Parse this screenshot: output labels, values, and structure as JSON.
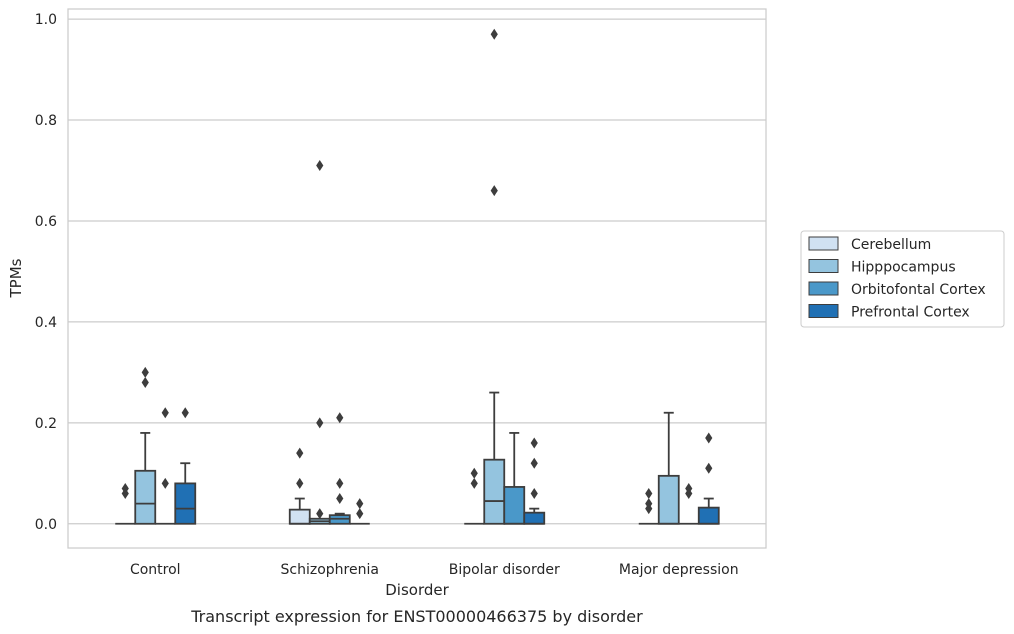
{
  "chart_data": {
    "type": "box",
    "ylabel": "TPMs",
    "xlabel": "Disorder",
    "caption": "Transcript expression for ENST00000466375 by disorder",
    "ylim": [
      -0.048,
      1.02
    ],
    "yticks": [
      0.0,
      0.2,
      0.4,
      0.6,
      0.8,
      1.0
    ],
    "grid": true,
    "legend_position": "right",
    "categories": [
      "Control",
      "Schizophrenia",
      "Bipolar disorder",
      "Major depression"
    ],
    "series": [
      {
        "name": "Cerebellum",
        "color": "#d0e1f2",
        "boxes": [
          {
            "whislo": 0.0,
            "q1": 0.0,
            "med": 0.0,
            "q3": 0.0,
            "whishi": 0.0,
            "fliers": [
              0.06,
              0.07
            ]
          },
          {
            "whislo": 0.0,
            "q1": 0.0,
            "med": 0.0,
            "q3": 0.028,
            "whishi": 0.05,
            "fliers": [
              0.08,
              0.14
            ]
          },
          {
            "whislo": 0.0,
            "q1": 0.0,
            "med": 0.0,
            "q3": 0.0,
            "whishi": 0.0,
            "fliers": [
              0.08,
              0.1
            ]
          },
          {
            "whislo": 0.0,
            "q1": 0.0,
            "med": 0.0,
            "q3": 0.0,
            "whishi": 0.0,
            "fliers": [
              0.03,
              0.04,
              0.06
            ]
          }
        ]
      },
      {
        "name": "Hipppocampus",
        "color": "#94c4df",
        "boxes": [
          {
            "whislo": 0.0,
            "q1": 0.0,
            "med": 0.04,
            "q3": 0.105,
            "whishi": 0.18,
            "fliers": [
              0.28,
              0.3
            ]
          },
          {
            "whislo": 0.0,
            "q1": 0.0,
            "med": 0.005,
            "q3": 0.01,
            "whishi": 0.01,
            "fliers": [
              0.02,
              0.2,
              0.71
            ]
          },
          {
            "whislo": 0.0,
            "q1": 0.0,
            "med": 0.045,
            "q3": 0.127,
            "whishi": 0.26,
            "fliers": [
              0.66,
              0.97
            ]
          },
          {
            "whislo": 0.0,
            "q1": 0.0,
            "med": 0.0,
            "q3": 0.095,
            "whishi": 0.22,
            "fliers": []
          }
        ]
      },
      {
        "name": "Orbitofontal Cortex",
        "color": "#4a98c9",
        "boxes": [
          {
            "whislo": 0.0,
            "q1": 0.0,
            "med": 0.0,
            "q3": 0.0,
            "whishi": 0.0,
            "fliers": [
              0.08,
              0.22
            ]
          },
          {
            "whislo": 0.0,
            "q1": 0.0,
            "med": 0.01,
            "q3": 0.017,
            "whishi": 0.02,
            "fliers": [
              0.05,
              0.08,
              0.21
            ]
          },
          {
            "whislo": 0.0,
            "q1": 0.0,
            "med": 0.0,
            "q3": 0.073,
            "whishi": 0.18,
            "fliers": []
          },
          {
            "whislo": 0.0,
            "q1": 0.0,
            "med": 0.0,
            "q3": 0.0,
            "whishi": 0.0,
            "fliers": [
              0.06,
              0.07
            ]
          }
        ]
      },
      {
        "name": "Prefrontal Cortex",
        "color": "#2070b4",
        "boxes": [
          {
            "whislo": 0.0,
            "q1": 0.0,
            "med": 0.03,
            "q3": 0.08,
            "whishi": 0.12,
            "fliers": [
              0.22
            ]
          },
          {
            "whislo": 0.0,
            "q1": 0.0,
            "med": 0.0,
            "q3": 0.0,
            "whishi": 0.0,
            "fliers": [
              0.02,
              0.04
            ]
          },
          {
            "whislo": 0.0,
            "q1": 0.0,
            "med": 0.0,
            "q3": 0.022,
            "whishi": 0.03,
            "fliers": [
              0.06,
              0.12,
              0.16
            ]
          },
          {
            "whislo": 0.0,
            "q1": 0.0,
            "med": 0.0,
            "q3": 0.032,
            "whishi": 0.05,
            "fliers": [
              0.11,
              0.17
            ]
          }
        ]
      }
    ]
  }
}
